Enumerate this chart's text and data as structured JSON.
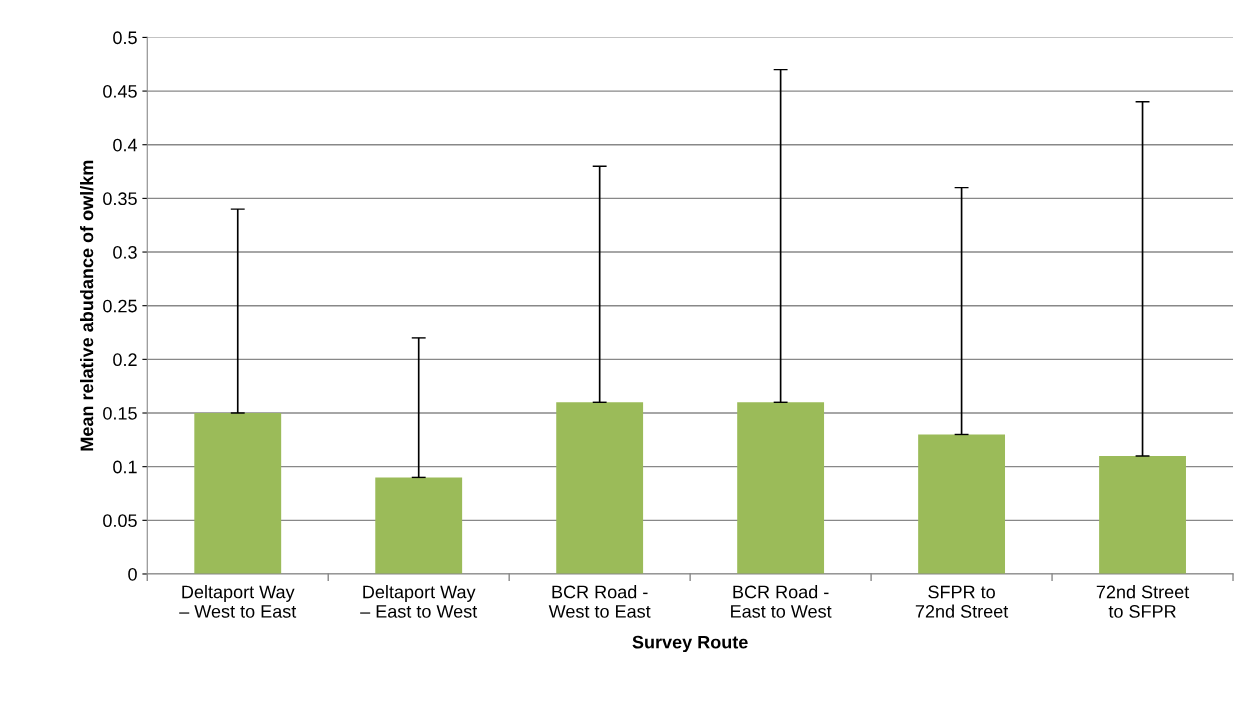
{
  "chart_data": {
    "type": "bar",
    "xlabel": "Survey Route",
    "ylabel": "Mean relative abudance of owl/km",
    "categories": [
      "Deltaport Way – West to East",
      "Deltaport Way – East to West",
      "BCR Road - West to East",
      "BCR Road - East to West",
      "SFPR to 72nd Street",
      "72nd Street to SFPR"
    ],
    "values": [
      0.15,
      0.09,
      0.16,
      0.16,
      0.13,
      0.11
    ],
    "errors": [
      [
        0.15,
        0.34
      ],
      [
        0.09,
        0.22
      ],
      [
        0.16,
        0.38
      ],
      [
        0.16,
        0.47
      ],
      [
        0.13,
        0.36
      ],
      [
        0.11,
        0.44
      ]
    ],
    "color": "#9bbb59",
    "ylim": [
      0,
      0.5
    ],
    "yticks": [
      0,
      0.05,
      0.1,
      0.15,
      0.2,
      0.25,
      0.3,
      0.35,
      0.4,
      0.45,
      0.5
    ],
    "grid": "y",
    "legend": false
  }
}
